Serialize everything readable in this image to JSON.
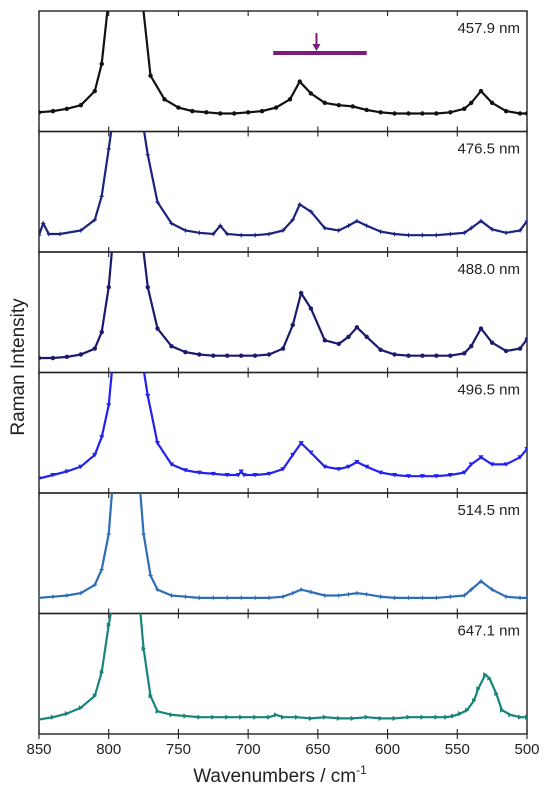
{
  "chart_data": {
    "type": "line",
    "title": "",
    "xlabel": "Wavenumbers / cm",
    "xlabel_sup": "-1",
    "ylabel": "Raman Intensity",
    "xlim": [
      850,
      500
    ],
    "x_reversed": true,
    "x_ticks": [
      850,
      800,
      750,
      700,
      650,
      600,
      550,
      500
    ],
    "y_ticks_shown": false,
    "grid": false,
    "panels": [
      {
        "label": "457.9 nm",
        "color": "#111111",
        "marker": "circle",
        "x": [
          850,
          840,
          830,
          820,
          810,
          805,
          800,
          797,
          780,
          776,
          770,
          760,
          750,
          740,
          730,
          720,
          710,
          700,
          690,
          680,
          670,
          663,
          655,
          645,
          635,
          625,
          615,
          605,
          595,
          585,
          575,
          565,
          555,
          545,
          540,
          533,
          525,
          515,
          505,
          500
        ],
        "y": [
          0.04,
          0.05,
          0.07,
          0.1,
          0.22,
          0.45,
          1.0,
          1.0,
          1.0,
          1.0,
          0.35,
          0.15,
          0.08,
          0.05,
          0.04,
          0.03,
          0.03,
          0.04,
          0.05,
          0.08,
          0.15,
          0.3,
          0.2,
          0.12,
          0.1,
          0.09,
          0.06,
          0.04,
          0.03,
          0.03,
          0.03,
          0.03,
          0.04,
          0.07,
          0.12,
          0.22,
          0.12,
          0.05,
          0.03,
          0.03
        ],
        "annotation": {
          "type": "bar-with-arrow",
          "x_start": 682,
          "x_end": 615,
          "x_arrow": 651
        }
      },
      {
        "label": "476.5 nm",
        "color": "#1a237e",
        "marker": "star",
        "x": [
          850,
          847,
          843,
          835,
          820,
          810,
          805,
          800,
          797,
          776,
          772,
          765,
          755,
          745,
          735,
          725,
          720,
          715,
          705,
          695,
          685,
          675,
          668,
          663,
          655,
          645,
          635,
          628,
          622,
          615,
          605,
          595,
          585,
          575,
          565,
          555,
          545,
          540,
          533,
          525,
          515,
          505,
          500
        ],
        "y": [
          0.02,
          0.12,
          0.03,
          0.03,
          0.06,
          0.15,
          0.35,
          0.75,
          1.0,
          1.0,
          0.7,
          0.3,
          0.12,
          0.06,
          0.04,
          0.03,
          0.1,
          0.03,
          0.02,
          0.02,
          0.03,
          0.06,
          0.15,
          0.28,
          0.22,
          0.08,
          0.06,
          0.1,
          0.14,
          0.1,
          0.05,
          0.03,
          0.02,
          0.02,
          0.02,
          0.03,
          0.04,
          0.08,
          0.14,
          0.07,
          0.04,
          0.06,
          0.14
        ]
      },
      {
        "label": "488.0 nm",
        "color": "#1a1a6e",
        "marker": "circle",
        "x": [
          850,
          840,
          830,
          820,
          810,
          805,
          800,
          797,
          776,
          772,
          765,
          755,
          745,
          735,
          725,
          715,
          705,
          695,
          685,
          675,
          668,
          662,
          655,
          645,
          635,
          628,
          622,
          615,
          605,
          595,
          585,
          575,
          565,
          555,
          545,
          540,
          533,
          525,
          515,
          505,
          500
        ],
        "y": [
          0.0,
          0.0,
          0.01,
          0.03,
          0.08,
          0.22,
          0.6,
          1.0,
          1.0,
          0.6,
          0.25,
          0.1,
          0.05,
          0.03,
          0.02,
          0.02,
          0.02,
          0.02,
          0.03,
          0.08,
          0.28,
          0.55,
          0.42,
          0.15,
          0.12,
          0.18,
          0.26,
          0.18,
          0.07,
          0.03,
          0.02,
          0.02,
          0.02,
          0.02,
          0.04,
          0.1,
          0.25,
          0.13,
          0.06,
          0.08,
          0.16
        ]
      },
      {
        "label": "496.5 nm",
        "color": "#2222ee",
        "marker": "triangle-down",
        "x": [
          850,
          840,
          830,
          820,
          810,
          805,
          800,
          797,
          776,
          772,
          765,
          755,
          745,
          735,
          725,
          715,
          707,
          705,
          703,
          695,
          685,
          675,
          668,
          662,
          655,
          645,
          635,
          628,
          622,
          615,
          605,
          595,
          585,
          575,
          565,
          555,
          545,
          540,
          533,
          525,
          515,
          505,
          500
        ],
        "y": [
          0.0,
          0.03,
          0.06,
          0.1,
          0.2,
          0.35,
          0.62,
          1.0,
          1.0,
          0.7,
          0.3,
          0.12,
          0.07,
          0.05,
          0.04,
          0.03,
          0.03,
          0.06,
          0.03,
          0.03,
          0.04,
          0.08,
          0.2,
          0.3,
          0.22,
          0.1,
          0.08,
          0.1,
          0.14,
          0.1,
          0.05,
          0.03,
          0.02,
          0.02,
          0.02,
          0.03,
          0.05,
          0.12,
          0.18,
          0.12,
          0.12,
          0.18,
          0.25
        ]
      },
      {
        "label": "514.5 nm",
        "color": "#2e6db8",
        "marker": "star",
        "x": [
          850,
          840,
          830,
          820,
          810,
          805,
          800,
          797,
          778,
          775,
          770,
          765,
          755,
          745,
          735,
          725,
          715,
          705,
          695,
          685,
          675,
          668,
          662,
          655,
          645,
          635,
          628,
          622,
          615,
          605,
          595,
          585,
          575,
          565,
          555,
          545,
          540,
          533,
          525,
          515,
          505,
          500
        ],
        "y": [
          0.01,
          0.02,
          0.03,
          0.05,
          0.12,
          0.25,
          0.55,
          1.0,
          1.0,
          0.55,
          0.2,
          0.08,
          0.03,
          0.02,
          0.01,
          0.01,
          0.01,
          0.01,
          0.01,
          0.01,
          0.02,
          0.05,
          0.08,
          0.06,
          0.03,
          0.03,
          0.04,
          0.05,
          0.04,
          0.02,
          0.01,
          0.01,
          0.01,
          0.01,
          0.02,
          0.03,
          0.08,
          0.15,
          0.08,
          0.02,
          0.01,
          0.01
        ]
      },
      {
        "label": "647.1 nm",
        "color": "#17857a",
        "marker": "triangle-right",
        "x": [
          850,
          840,
          830,
          820,
          810,
          805,
          800,
          797,
          778,
          775,
          770,
          765,
          755,
          745,
          735,
          725,
          715,
          705,
          695,
          685,
          680,
          675,
          665,
          655,
          645,
          635,
          625,
          615,
          605,
          595,
          585,
          575,
          565,
          558,
          553,
          548,
          543,
          538,
          535,
          530,
          527,
          522,
          518,
          512,
          505,
          500
        ],
        "y": [
          0.0,
          0.02,
          0.05,
          0.1,
          0.2,
          0.4,
          0.8,
          1.0,
          1.0,
          0.6,
          0.2,
          0.07,
          0.04,
          0.03,
          0.02,
          0.02,
          0.02,
          0.02,
          0.02,
          0.02,
          0.04,
          0.02,
          0.02,
          0.01,
          0.02,
          0.01,
          0.01,
          0.02,
          0.01,
          0.01,
          0.02,
          0.02,
          0.02,
          0.02,
          0.03,
          0.05,
          0.08,
          0.16,
          0.26,
          0.38,
          0.35,
          0.22,
          0.08,
          0.04,
          0.02,
          0.02
        ]
      }
    ]
  }
}
